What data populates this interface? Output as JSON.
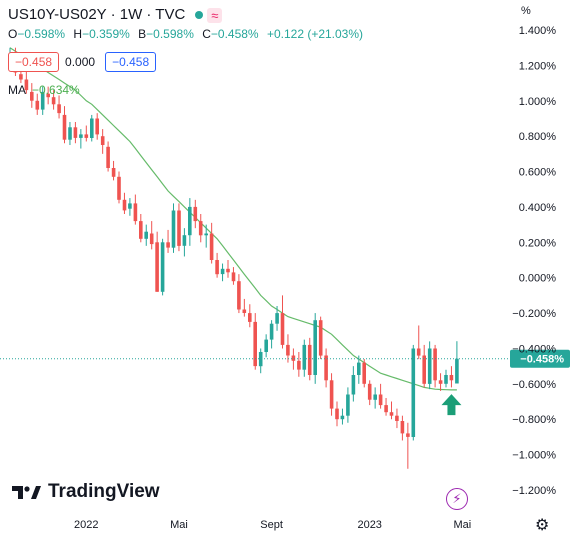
{
  "header": {
    "symbol": "US10Y-US02Y · 1W · TVC",
    "badge_icon": "≈"
  },
  "ohlc": {
    "o_label": "O",
    "o_value": "−0.598%",
    "h_label": "H",
    "h_value": "−0.359%",
    "b_label": "B",
    "b_value": "−0.598%",
    "c_label": "C",
    "c_value": "−0.458%",
    "change": "+0.122 (+21.03%)"
  },
  "quote_boxes": {
    "sell": "−0.458",
    "spread": "0.000",
    "buy": "−0.458"
  },
  "ma": {
    "label": "MA",
    "value": "−0.634%"
  },
  "axis_unit": "%",
  "price_tag": "−0.458%",
  "brand": {
    "name": "TradingView"
  },
  "colors": {
    "up": "#26a69a",
    "down": "#ef5350",
    "ma": "#66bb6a",
    "arrow": "#1b9e77",
    "price_line": "#26a69a"
  },
  "icons": {
    "bolt": "bolt-icon",
    "gear": "gear-icon",
    "logo": "tradingview-logo-icon"
  },
  "chart_data": {
    "type": "candlestick",
    "y_ticks": [
      "1.400%",
      "1.200%",
      "1.000%",
      "0.800%",
      "0.600%",
      "0.400%",
      "0.200%",
      "0.000%",
      "−0.200%",
      "−0.400%",
      "−0.600%",
      "−0.800%",
      "−1.000%",
      "−1.200%"
    ],
    "y_tick_values": [
      1.4,
      1.2,
      1.0,
      0.8,
      0.6,
      0.4,
      0.2,
      0.0,
      -0.2,
      -0.4,
      -0.6,
      -0.8,
      -1.0,
      -1.2
    ],
    "x_ticks": [
      {
        "label": "2022",
        "week": 14
      },
      {
        "label": "Mai",
        "week": 31
      },
      {
        "label": "Sept",
        "week": 48
      },
      {
        "label": "2023",
        "week": 66
      },
      {
        "label": "Mai",
        "week": 83
      }
    ],
    "ylim": [
      -1.3,
      1.45
    ],
    "last_price": -0.458,
    "candles": [
      [
        1.22,
        1.3,
        1.18,
        1.26
      ],
      [
        1.26,
        1.3,
        1.14,
        1.16
      ],
      [
        1.15,
        1.2,
        1.1,
        1.12
      ],
      [
        1.12,
        1.17,
        1.04,
        1.06
      ],
      [
        1.05,
        1.1,
        0.96,
        1.0
      ],
      [
        1.0,
        1.04,
        0.92,
        0.95
      ],
      [
        0.95,
        1.08,
        0.92,
        1.05
      ],
      [
        1.04,
        1.08,
        0.98,
        1.02
      ],
      [
        1.02,
        1.06,
        0.95,
        0.98
      ],
      [
        0.98,
        1.03,
        0.9,
        0.93
      ],
      [
        0.92,
        0.97,
        0.76,
        0.78
      ],
      [
        0.78,
        0.88,
        0.75,
        0.85
      ],
      [
        0.85,
        0.88,
        0.76,
        0.79
      ],
      [
        0.79,
        0.84,
        0.73,
        0.81
      ],
      [
        0.81,
        0.86,
        0.77,
        0.79
      ],
      [
        0.79,
        0.92,
        0.77,
        0.9
      ],
      [
        0.9,
        0.93,
        0.78,
        0.81
      ],
      [
        0.8,
        0.84,
        0.7,
        0.75
      ],
      [
        0.74,
        0.77,
        0.6,
        0.62
      ],
      [
        0.62,
        0.66,
        0.55,
        0.57
      ],
      [
        0.57,
        0.6,
        0.42,
        0.44
      ],
      [
        0.44,
        0.48,
        0.36,
        0.38
      ],
      [
        0.39,
        0.45,
        0.35,
        0.42
      ],
      [
        0.42,
        0.47,
        0.3,
        0.32
      ],
      [
        0.32,
        0.36,
        0.2,
        0.22
      ],
      [
        0.22,
        0.3,
        0.18,
        0.26
      ],
      [
        0.25,
        0.32,
        0.16,
        0.19
      ],
      [
        0.2,
        0.26,
        -0.08,
        -0.08
      ],
      [
        -0.08,
        0.22,
        -0.1,
        0.2
      ],
      [
        0.2,
        0.27,
        0.14,
        0.17
      ],
      [
        0.17,
        0.42,
        0.14,
        0.38
      ],
      [
        0.38,
        0.42,
        0.15,
        0.18
      ],
      [
        0.18,
        0.28,
        0.12,
        0.24
      ],
      [
        0.24,
        0.45,
        0.18,
        0.4
      ],
      [
        0.4,
        0.44,
        0.28,
        0.32
      ],
      [
        0.32,
        0.36,
        0.2,
        0.24
      ],
      [
        0.24,
        0.3,
        0.17,
        0.25
      ],
      [
        0.25,
        0.31,
        0.08,
        0.1
      ],
      [
        0.1,
        0.14,
        0.0,
        0.02
      ],
      [
        0.02,
        0.08,
        -0.02,
        0.05
      ],
      [
        0.05,
        0.1,
        0.0,
        0.03
      ],
      [
        0.03,
        0.06,
        -0.04,
        -0.02
      ],
      [
        -0.02,
        0.02,
        -0.2,
        -0.18
      ],
      [
        -0.18,
        -0.12,
        -0.22,
        -0.2
      ],
      [
        -0.2,
        -0.15,
        -0.28,
        -0.25
      ],
      [
        -0.25,
        -0.2,
        -0.52,
        -0.5
      ],
      [
        -0.5,
        -0.4,
        -0.54,
        -0.42
      ],
      [
        -0.42,
        -0.32,
        -0.45,
        -0.35
      ],
      [
        -0.35,
        -0.24,
        -0.4,
        -0.26
      ],
      [
        -0.26,
        -0.16,
        -0.3,
        -0.2
      ],
      [
        -0.2,
        -0.1,
        -0.4,
        -0.38
      ],
      [
        -0.38,
        -0.32,
        -0.48,
        -0.44
      ],
      [
        -0.44,
        -0.4,
        -0.52,
        -0.47
      ],
      [
        -0.47,
        -0.42,
        -0.56,
        -0.52
      ],
      [
        -0.52,
        -0.35,
        -0.56,
        -0.38
      ],
      [
        -0.38,
        -0.34,
        -0.58,
        -0.55
      ],
      [
        -0.55,
        -0.2,
        -0.6,
        -0.24
      ],
      [
        -0.24,
        -0.22,
        -0.46,
        -0.44
      ],
      [
        -0.44,
        -0.4,
        -0.62,
        -0.58
      ],
      [
        -0.58,
        -0.54,
        -0.78,
        -0.74
      ],
      [
        -0.74,
        -0.7,
        -0.84,
        -0.8
      ],
      [
        -0.8,
        -0.74,
        -0.83,
        -0.78
      ],
      [
        -0.78,
        -0.62,
        -0.82,
        -0.66
      ],
      [
        -0.66,
        -0.5,
        -0.7,
        -0.55
      ],
      [
        -0.55,
        -0.44,
        -0.6,
        -0.48
      ],
      [
        -0.48,
        -0.46,
        -0.62,
        -0.6
      ],
      [
        -0.6,
        -0.58,
        -0.72,
        -0.69
      ],
      [
        -0.69,
        -0.62,
        -0.74,
        -0.66
      ],
      [
        -0.66,
        -0.6,
        -0.74,
        -0.72
      ],
      [
        -0.72,
        -0.68,
        -0.78,
        -0.76
      ],
      [
        -0.76,
        -0.7,
        -0.8,
        -0.78
      ],
      [
        -0.78,
        -0.74,
        -0.85,
        -0.81
      ],
      [
        -0.81,
        -0.78,
        -0.92,
        -0.88
      ],
      [
        -0.88,
        -0.82,
        -1.08,
        -0.9
      ],
      [
        -0.9,
        -0.38,
        -0.92,
        -0.4
      ],
      [
        -0.4,
        -0.27,
        -0.46,
        -0.44
      ],
      [
        -0.44,
        -0.38,
        -0.62,
        -0.6
      ],
      [
        -0.6,
        -0.36,
        -0.63,
        -0.4
      ],
      [
        -0.4,
        -0.38,
        -0.62,
        -0.58
      ],
      [
        -0.58,
        -0.54,
        -0.64,
        -0.6
      ],
      [
        -0.6,
        -0.52,
        -0.62,
        -0.55
      ],
      [
        -0.55,
        -0.5,
        -0.62,
        -0.58
      ],
      [
        -0.598,
        -0.359,
        -0.598,
        -0.458
      ]
    ],
    "ma_series": [
      1.3,
      1.28,
      1.26,
      1.24,
      1.22,
      1.2,
      1.18,
      1.16,
      1.14,
      1.12,
      1.1,
      1.08,
      1.06,
      1.03,
      1.0,
      0.98,
      0.95,
      0.92,
      0.89,
      0.86,
      0.83,
      0.8,
      0.77,
      0.73,
      0.69,
      0.65,
      0.61,
      0.57,
      0.53,
      0.49,
      0.46,
      0.43,
      0.4,
      0.37,
      0.34,
      0.31,
      0.28,
      0.25,
      0.22,
      0.18,
      0.14,
      0.1,
      0.06,
      0.02,
      -0.02,
      -0.06,
      -0.1,
      -0.13,
      -0.16,
      -0.18,
      -0.2,
      -0.22,
      -0.23,
      -0.24,
      -0.25,
      -0.26,
      -0.27,
      -0.28,
      -0.3,
      -0.32,
      -0.35,
      -0.38,
      -0.41,
      -0.44,
      -0.46,
      -0.48,
      -0.5,
      -0.52,
      -0.54,
      -0.55,
      -0.56,
      -0.57,
      -0.58,
      -0.59,
      -0.6,
      -0.61,
      -0.62,
      -0.625,
      -0.63,
      -0.632,
      -0.633,
      -0.634,
      -0.634
    ],
    "marker": {
      "type": "arrow-up",
      "week": 81,
      "value": -0.72
    }
  }
}
